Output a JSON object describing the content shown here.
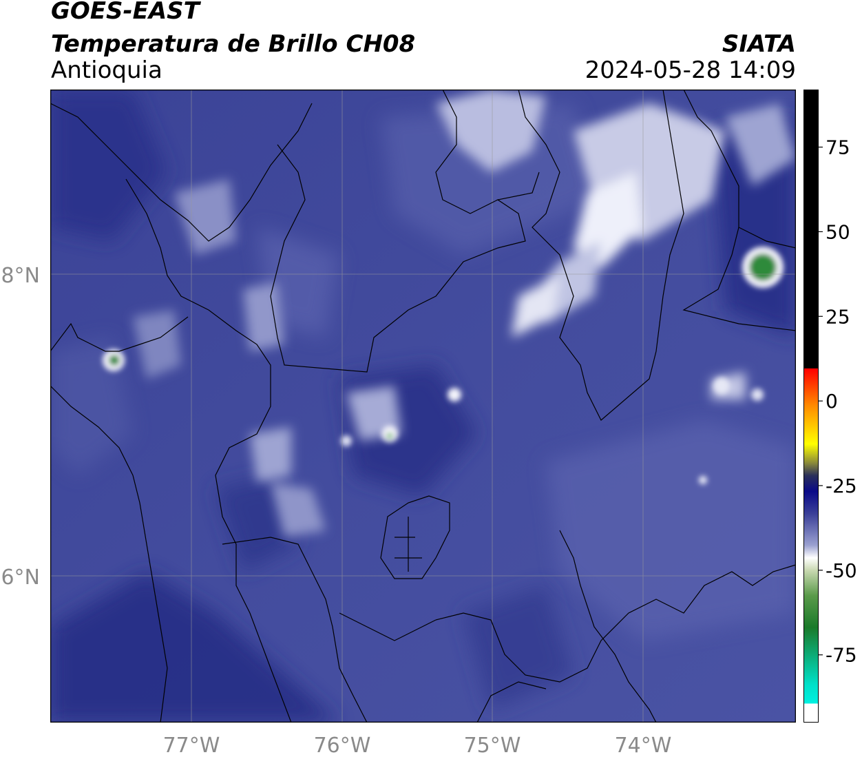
{
  "header": {
    "satellite": "GOES-EAST",
    "product": "Temperatura de Brillo CH08",
    "region": "Antioquia",
    "organization": "SIATA",
    "datetime": "2024-05-28 14:09"
  },
  "map": {
    "lon_ticks": [
      "77°W",
      "76°W",
      "75°W",
      "74°W"
    ],
    "lat_ticks": [
      "8°N",
      "6°N"
    ],
    "gridlines": true,
    "colors": {
      "background_dark": "#252e86",
      "background_mid": "#3d4598",
      "background_light": "#5a62ae",
      "cloud_light": "#c8cbe6",
      "cloud_white": "#f4f4fb",
      "cold_green": "#2f8a3a",
      "borders": "#000000",
      "grid": "#9a9a9a"
    }
  },
  "colorbar": {
    "tick_labels": [
      "75",
      "50",
      "25",
      "0",
      "-25",
      "-50",
      "-75"
    ],
    "tick_values": [
      75,
      50,
      25,
      0,
      -25,
      -50,
      -75
    ],
    "range": [
      -95,
      92
    ]
  }
}
